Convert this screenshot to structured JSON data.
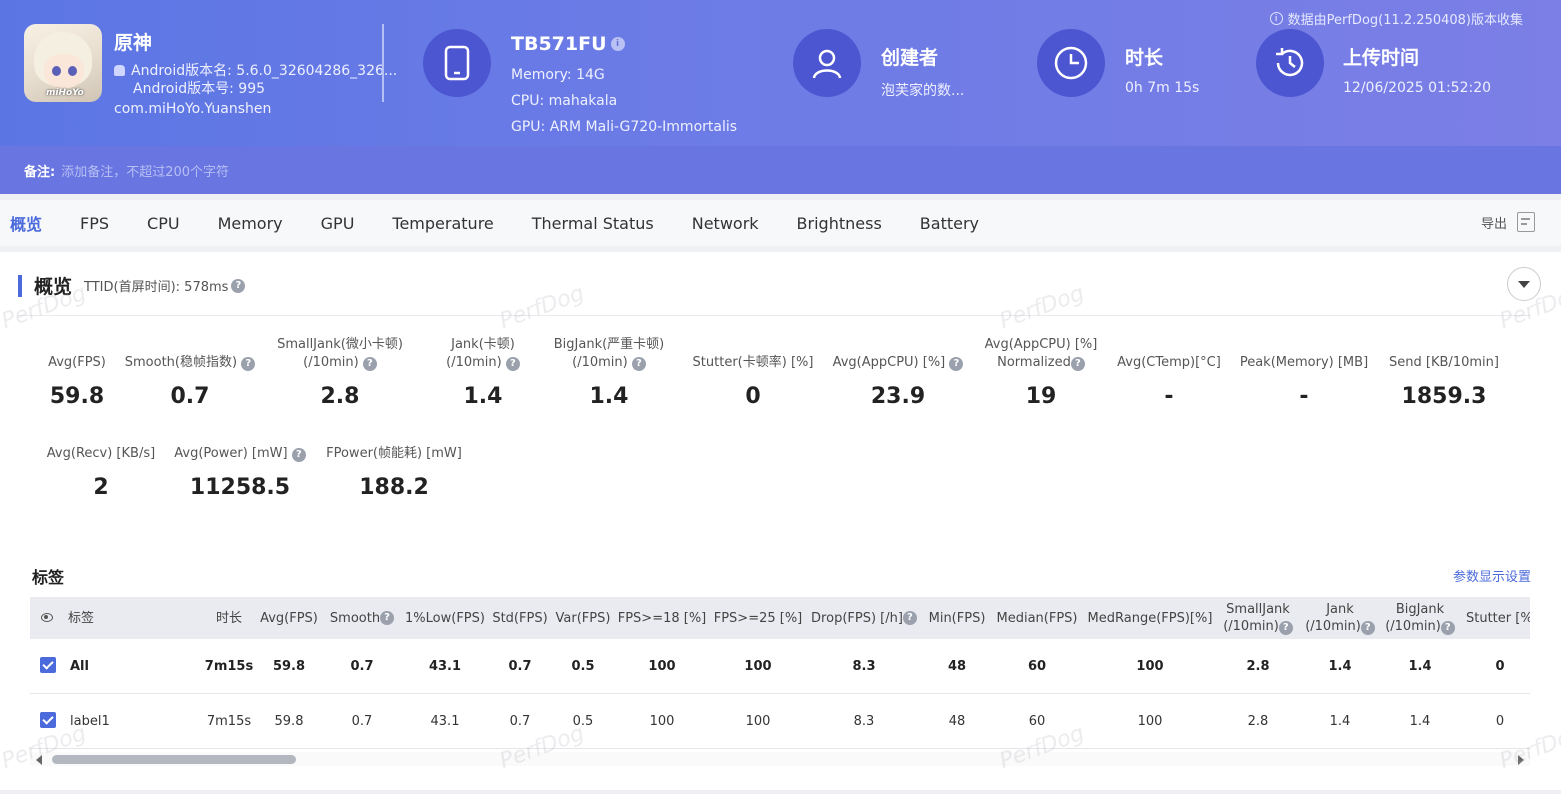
{
  "header": {
    "notice": "数据由PerfDog(11.2.250408)版本收集",
    "app": {
      "name": "原神",
      "version_name": "Android版本名: 5.6.0_32604286_326...",
      "version_code": "Android版本号: 995",
      "package": "com.miHoYo.Yuanshen",
      "icon_text": "miHoYo"
    },
    "device": {
      "model": "TB571FU",
      "memory": "Memory: 14G",
      "cpu": "CPU: mahakala",
      "gpu": "GPU: ARM Mali-G720-Immortalis"
    },
    "creator": {
      "title": "创建者",
      "value": "泡芙家的数..."
    },
    "duration": {
      "title": "时长",
      "value": "0h 7m 15s"
    },
    "upload": {
      "title": "上传时间",
      "value": "12/06/2025 01:52:20"
    }
  },
  "remark": {
    "label": "备注:",
    "placeholder": "添加备注，不超过200个字符"
  },
  "tabs": [
    "概览",
    "FPS",
    "CPU",
    "Memory",
    "GPU",
    "Temperature",
    "Thermal Status",
    "Network",
    "Brightness",
    "Battery"
  ],
  "export_label": "导出",
  "overview": {
    "title": "概览",
    "ttid": "TTID(首屏时间): 578ms",
    "metrics_row1": [
      {
        "label": "Avg(FPS)",
        "value": "59.8"
      },
      {
        "label": "Smooth(稳帧指数)",
        "value": "0.7"
      },
      {
        "label": "SmallJank(微小卡顿)",
        "label2": "(/10min)",
        "value": "2.8"
      },
      {
        "label": "Jank(卡顿)",
        "label2": "(/10min)",
        "value": "1.4"
      },
      {
        "label": "BigJank(严重卡顿)",
        "label2": "(/10min)",
        "value": "1.4"
      },
      {
        "label": "Stutter(卡顿率) [%]",
        "value": "0"
      },
      {
        "label": "Avg(AppCPU) [%]",
        "value": "23.9"
      },
      {
        "label": "Avg(AppCPU) [%]",
        "label2": "Normalized",
        "value": "19"
      },
      {
        "label": "Avg(CTemp)[°C]",
        "value": "-"
      },
      {
        "label": "Peak(Memory) [MB]",
        "value": "-"
      },
      {
        "label": "Send [KB/10min]",
        "value": "1859.3"
      }
    ],
    "metrics_row2": [
      {
        "label": "Avg(Recv) [KB/s]",
        "value": "2"
      },
      {
        "label": "Avg(Power) [mW]",
        "value": "11258.5"
      },
      {
        "label": "FPower(帧能耗) [mW]",
        "value": "188.2"
      }
    ]
  },
  "tags": {
    "title": "标签",
    "settings_link": "参数显示设置",
    "columns": [
      "标签",
      "时长",
      "Avg(FPS)",
      "Smooth",
      "1%Low(FPS)",
      "Std(FPS)",
      "Var(FPS)",
      "FPS>=18 [%]",
      "FPS>=25 [%]",
      "Drop(FPS) [/h]",
      "Min(FPS)",
      "Median(FPS)",
      "MedRange(FPS)[%]",
      "SmallJank",
      "Jank",
      "BigJank",
      "Stutter [%"
    ],
    "columns_sub": {
      "SmallJank": "(/10min)",
      "Jank": "(/10min)",
      "BigJank": "(/10min)"
    },
    "rows": [
      {
        "label": "All",
        "values": [
          "7m15s",
          "59.8",
          "0.7",
          "43.1",
          "0.7",
          "0.5",
          "100",
          "100",
          "8.3",
          "48",
          "60",
          "100",
          "2.8",
          "1.4",
          "1.4",
          "0"
        ]
      },
      {
        "label": "label1",
        "values": [
          "7m15s",
          "59.8",
          "0.7",
          "43.1",
          "0.7",
          "0.5",
          "100",
          "100",
          "8.3",
          "48",
          "60",
          "100",
          "2.8",
          "1.4",
          "1.4",
          "0"
        ]
      }
    ]
  },
  "watermark": "PerfDog"
}
